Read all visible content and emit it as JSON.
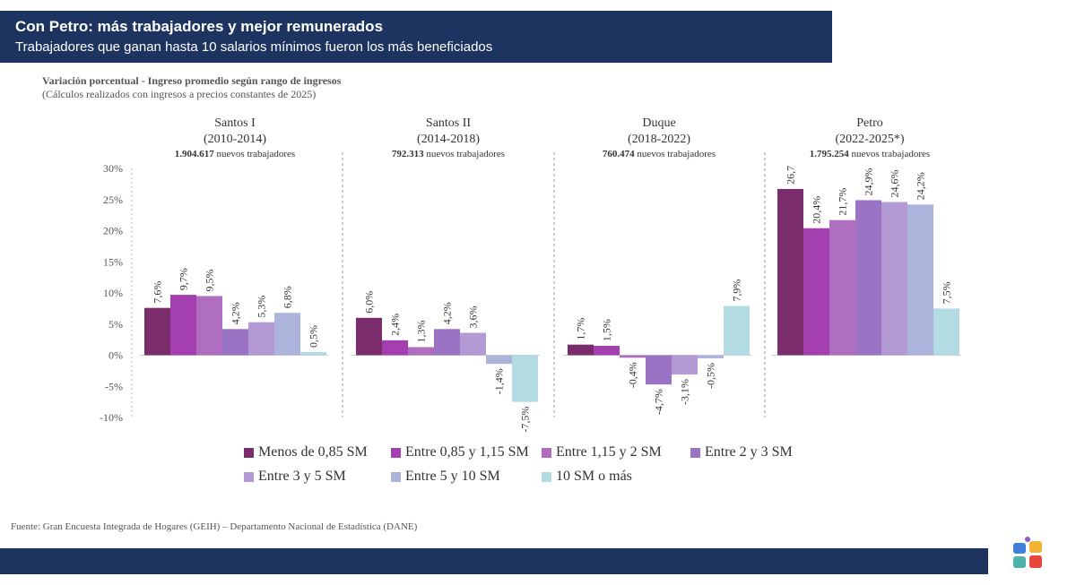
{
  "header": {
    "title": "Con Petro: más trabajadores y mejor remunerados",
    "subtitle": "Trabajadores que ganan hasta 10 salarios mínimos fueron los más beneficiados"
  },
  "chart_data": {
    "type": "bar",
    "title": "Variación porcentual - Ingreso promedio según rango de ingresos",
    "subtitle": "(Cálculos realizados con ingresos a precios constantes de 2025)",
    "ylim": [
      -10,
      30
    ],
    "yticks": [
      "30%",
      "25%",
      "20%",
      "15%",
      "10%",
      "5%",
      "0%",
      "-5%",
      "-10%"
    ],
    "categories": [
      {
        "name": "Santos I",
        "period": "(2010-2014)",
        "workers_num": "1.904.617",
        "workers_text": "nuevos trabajadores"
      },
      {
        "name": "Santos II",
        "period": "(2014-2018)",
        "workers_num": "792.313",
        "workers_text": "nuevos trabajadores"
      },
      {
        "name": "Duque",
        "period": "(2018-2022)",
        "workers_num": "760.474",
        "workers_text": "nuevos trabajadores"
      },
      {
        "name": "Petro",
        "period": "(2022-2025*)",
        "workers_num": "1.795.254",
        "workers_text": "nuevos trabajadores"
      }
    ],
    "series": [
      {
        "name": "Menos de 0,85 SM",
        "color": "#7b2d6b",
        "values": [
          7.6,
          6.0,
          1.7,
          26.7
        ],
        "labels": [
          "7,6%",
          "6,0%",
          "1,7%",
          "26,7"
        ]
      },
      {
        "name": "Entre 0,85 y 1,15 SM",
        "color": "#a43fb0",
        "values": [
          9.7,
          2.4,
          1.5,
          20.4
        ],
        "labels": [
          "9,7%",
          "2,4%",
          "1,5%",
          "20,4%"
        ]
      },
      {
        "name": "Entre 1,15 y 2 SM",
        "color": "#b06ec0",
        "values": [
          9.5,
          1.3,
          -0.4,
          21.7
        ],
        "labels": [
          "9,5%",
          "1,3%",
          "-0,4%",
          "21,7%"
        ]
      },
      {
        "name": "Entre 2 y 3 SM",
        "color": "#9b73c4",
        "values": [
          4.2,
          4.2,
          -4.7,
          24.9
        ],
        "labels": [
          "4,2%",
          "4,2%",
          "-4,7%",
          "24,9%"
        ]
      },
      {
        "name": "Entre 3 y 5 SM",
        "color": "#b39ad4",
        "values": [
          5.3,
          3.6,
          -3.1,
          24.6
        ],
        "labels": [
          "5,3%",
          "3,6%",
          "-3,1%",
          "24,6%"
        ]
      },
      {
        "name": "Entre 5 y 10 SM",
        "color": "#adb4dc",
        "values": [
          6.8,
          -1.4,
          -0.5,
          24.2
        ],
        "labels": [
          "6,8%",
          "-1,4%",
          "-0,5%",
          "24,2%"
        ]
      },
      {
        "name": "10 SM o más",
        "color": "#b3dbe3",
        "values": [
          0.5,
          -7.5,
          7.9,
          7.5
        ],
        "labels": [
          "0,5%",
          "-7,5%",
          "7,9%",
          "7,5%"
        ]
      }
    ]
  },
  "source": "Fuente: Gran Encuesta Integrada de Hogares (GEIH) – Departamento Nacional de Estadística (DANE)",
  "logo": {
    "icon": "colorful-butterfly-logo-icon"
  }
}
